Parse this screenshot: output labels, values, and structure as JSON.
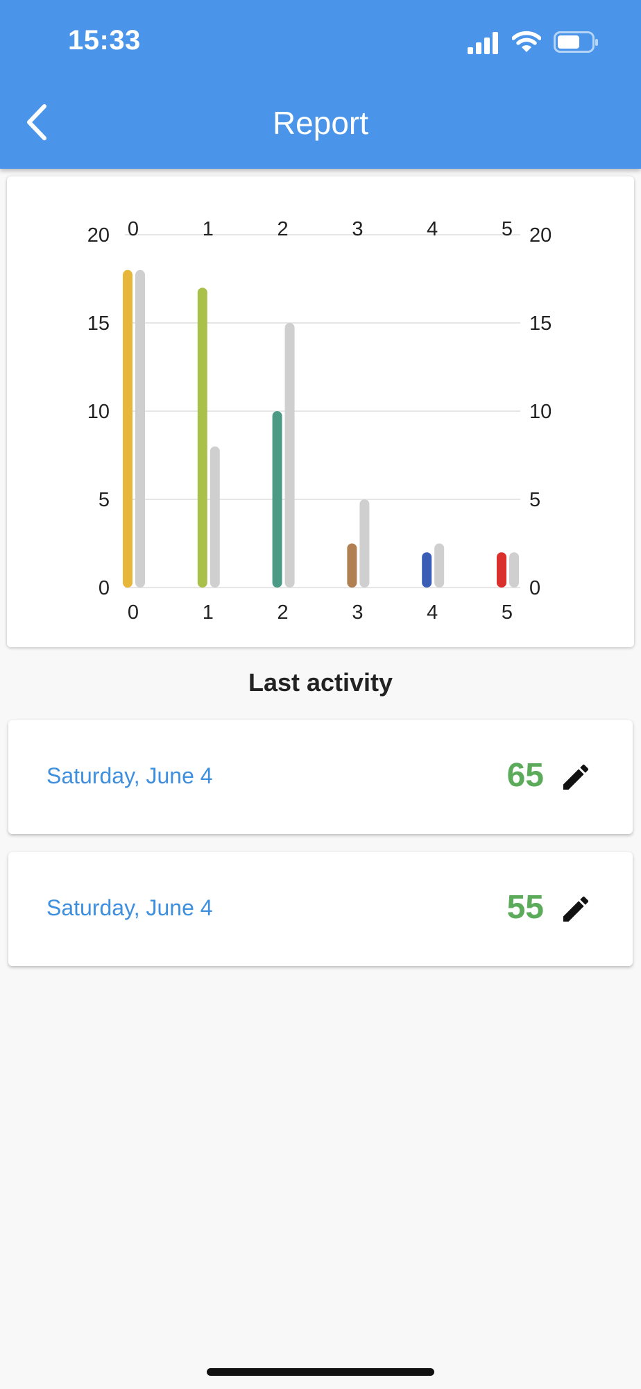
{
  "status_bar": {
    "time": "15:33",
    "icons": [
      "signal-icon",
      "wifi-icon",
      "battery-icon"
    ]
  },
  "app_bar": {
    "title": "Report",
    "back_icon": "chevron-left-icon",
    "color": "#4a94e9"
  },
  "chart_data": {
    "type": "bar",
    "categories": [
      "0",
      "1",
      "2",
      "3",
      "4",
      "5"
    ],
    "series": [
      {
        "values": [
          18,
          17,
          10,
          2.5,
          2,
          2
        ],
        "colors": [
          "#e7b73b",
          "#a9c14a",
          "#4b9a85",
          "#b07f52",
          "#3a5eb5",
          "#d9302c"
        ]
      },
      {
        "values": [
          18,
          8,
          15,
          5,
          2.5,
          2
        ],
        "color": "#cfcfcf"
      }
    ],
    "ylim": [
      0,
      20
    ],
    "yticks": [
      0,
      5,
      10,
      15,
      20
    ],
    "grid": true,
    "axis_labels_top": true,
    "axis_labels_right": true
  },
  "last_activity": {
    "title": "Last activity",
    "items": [
      {
        "date": "Saturday, June 4",
        "score": "65",
        "icon": "pencil-icon"
      },
      {
        "date": "Saturday, June 4",
        "score": "55",
        "icon": "pencil-icon"
      }
    ]
  }
}
